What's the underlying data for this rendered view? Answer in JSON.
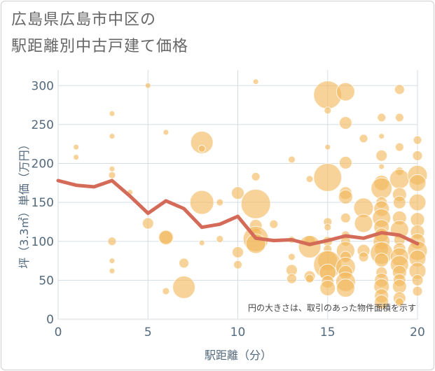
{
  "title_line1": "広島県広島市中区の",
  "title_line2": "駅距離別中古戸建て価格",
  "note": "円の大きさは、取引のあった物件面積を示す",
  "colors": {
    "bubble": "#f2b85c",
    "line": "#d46b58",
    "grid": "#d5dde3",
    "axis_text": "#53697d"
  },
  "chart_data": {
    "type": "scatter",
    "xlabel": "駅距離（分）",
    "ylabel": "坪（3.3㎡）単価（万円）",
    "xlim": [
      0,
      20
    ],
    "ylim": [
      0,
      320
    ],
    "x_ticks": [
      0,
      5,
      10,
      15,
      20
    ],
    "y_ticks": [
      0,
      50,
      100,
      150,
      200,
      250,
      300
    ],
    "grid": true,
    "series": [
      {
        "kind": "bubbles",
        "points": [
          {
            "x": 1,
            "y": 221,
            "r": 4
          },
          {
            "x": 1,
            "y": 208,
            "r": 4
          },
          {
            "x": 3,
            "y": 264,
            "r": 4
          },
          {
            "x": 3,
            "y": 235,
            "r": 4
          },
          {
            "x": 3,
            "y": 193,
            "r": 4
          },
          {
            "x": 3,
            "y": 185,
            "r": 5
          },
          {
            "x": 3,
            "y": 100,
            "r": 6
          },
          {
            "x": 3,
            "y": 75,
            "r": 4
          },
          {
            "x": 3,
            "y": 62,
            "r": 4
          },
          {
            "x": 4,
            "y": 163,
            "r": 4
          },
          {
            "x": 5,
            "y": 300,
            "r": 4
          },
          {
            "x": 5,
            "y": 123,
            "r": 8
          },
          {
            "x": 6,
            "y": 240,
            "r": 4
          },
          {
            "x": 6,
            "y": 105,
            "r": 11
          },
          {
            "x": 6,
            "y": 105,
            "r": 10
          },
          {
            "x": 6,
            "y": 36,
            "r": 5
          },
          {
            "x": 7,
            "y": 72,
            "r": 7
          },
          {
            "x": 7,
            "y": 41,
            "r": 16
          },
          {
            "x": 8,
            "y": 227,
            "r": 16
          },
          {
            "x": 8,
            "y": 219,
            "r": 5
          },
          {
            "x": 8,
            "y": 150,
            "r": 17
          },
          {
            "x": 8,
            "y": 98,
            "r": 4
          },
          {
            "x": 9,
            "y": 150,
            "r": 5
          },
          {
            "x": 9,
            "y": 103,
            "r": 5
          },
          {
            "x": 10,
            "y": 162,
            "r": 9
          },
          {
            "x": 10,
            "y": 86,
            "r": 8
          },
          {
            "x": 10,
            "y": 70,
            "r": 6
          },
          {
            "x": 11,
            "y": 305,
            "r": 4
          },
          {
            "x": 11,
            "y": 183,
            "r": 6
          },
          {
            "x": 11,
            "y": 148,
            "r": 21
          },
          {
            "x": 11,
            "y": 120,
            "r": 9
          },
          {
            "x": 11,
            "y": 110,
            "r": 8
          },
          {
            "x": 11,
            "y": 103,
            "r": 18
          },
          {
            "x": 11,
            "y": 97,
            "r": 14
          },
          {
            "x": 12,
            "y": 122,
            "r": 6
          },
          {
            "x": 13,
            "y": 205,
            "r": 5
          },
          {
            "x": 13,
            "y": 102,
            "r": 5
          },
          {
            "x": 13,
            "y": 80,
            "r": 5
          },
          {
            "x": 13,
            "y": 63,
            "r": 8
          },
          {
            "x": 13,
            "y": 52,
            "r": 7
          },
          {
            "x": 14,
            "y": 180,
            "r": 5
          },
          {
            "x": 14,
            "y": 100,
            "r": 8
          },
          {
            "x": 14,
            "y": 93,
            "r": 16
          },
          {
            "x": 14,
            "y": 55,
            "r": 8
          },
          {
            "x": 14,
            "y": 52,
            "r": 6
          },
          {
            "x": 15,
            "y": 288,
            "r": 20
          },
          {
            "x": 15,
            "y": 268,
            "r": 5
          },
          {
            "x": 15,
            "y": 221,
            "r": 4
          },
          {
            "x": 15,
            "y": 182,
            "r": 20
          },
          {
            "x": 15,
            "y": 125,
            "r": 6
          },
          {
            "x": 15,
            "y": 118,
            "r": 5
          },
          {
            "x": 15,
            "y": 100,
            "r": 7
          },
          {
            "x": 15,
            "y": 90,
            "r": 6
          },
          {
            "x": 15,
            "y": 75,
            "r": 14
          },
          {
            "x": 15,
            "y": 70,
            "r": 20
          },
          {
            "x": 15,
            "y": 60,
            "r": 12
          },
          {
            "x": 15,
            "y": 48,
            "r": 9
          },
          {
            "x": 15,
            "y": 40,
            "r": 11
          },
          {
            "x": 16,
            "y": 292,
            "r": 13
          },
          {
            "x": 16,
            "y": 252,
            "r": 9
          },
          {
            "x": 16,
            "y": 201,
            "r": 9
          },
          {
            "x": 16,
            "y": 162,
            "r": 9
          },
          {
            "x": 16,
            "y": 157,
            "r": 10
          },
          {
            "x": 16,
            "y": 130,
            "r": 7
          },
          {
            "x": 16,
            "y": 108,
            "r": 6
          },
          {
            "x": 16,
            "y": 100,
            "r": 7
          },
          {
            "x": 16,
            "y": 88,
            "r": 13
          },
          {
            "x": 16,
            "y": 80,
            "r": 8
          },
          {
            "x": 16,
            "y": 67,
            "r": 14
          },
          {
            "x": 16,
            "y": 60,
            "r": 10
          },
          {
            "x": 16,
            "y": 48,
            "r": 14
          },
          {
            "x": 16,
            "y": 40,
            "r": 13
          },
          {
            "x": 17,
            "y": 232,
            "r": 6
          },
          {
            "x": 17,
            "y": 143,
            "r": 14
          },
          {
            "x": 17,
            "y": 123,
            "r": 13
          },
          {
            "x": 17,
            "y": 88,
            "r": 9
          },
          {
            "x": 17,
            "y": 80,
            "r": 7
          },
          {
            "x": 18,
            "y": 259,
            "r": 6
          },
          {
            "x": 18,
            "y": 235,
            "r": 4
          },
          {
            "x": 18,
            "y": 210,
            "r": 8
          },
          {
            "x": 18,
            "y": 196,
            "r": 4
          },
          {
            "x": 18,
            "y": 175,
            "r": 11
          },
          {
            "x": 18,
            "y": 168,
            "r": 15
          },
          {
            "x": 18,
            "y": 150,
            "r": 8
          },
          {
            "x": 18,
            "y": 142,
            "r": 11
          },
          {
            "x": 18,
            "y": 130,
            "r": 13
          },
          {
            "x": 18,
            "y": 118,
            "r": 11
          },
          {
            "x": 18,
            "y": 108,
            "r": 10
          },
          {
            "x": 18,
            "y": 100,
            "r": 12
          },
          {
            "x": 18,
            "y": 90,
            "r": 10
          },
          {
            "x": 18,
            "y": 85,
            "r": 16
          },
          {
            "x": 18,
            "y": 76,
            "r": 10
          },
          {
            "x": 18,
            "y": 60,
            "r": 8
          },
          {
            "x": 18,
            "y": 50,
            "r": 10
          },
          {
            "x": 18,
            "y": 42,
            "r": 11
          },
          {
            "x": 18,
            "y": 30,
            "r": 10
          },
          {
            "x": 18,
            "y": 22,
            "r": 10
          },
          {
            "x": 19,
            "y": 295,
            "r": 7
          },
          {
            "x": 19,
            "y": 259,
            "r": 6
          },
          {
            "x": 19,
            "y": 221,
            "r": 6
          },
          {
            "x": 19,
            "y": 190,
            "r": 6
          },
          {
            "x": 19,
            "y": 180,
            "r": 14
          },
          {
            "x": 19,
            "y": 160,
            "r": 10
          },
          {
            "x": 19,
            "y": 150,
            "r": 9
          },
          {
            "x": 19,
            "y": 130,
            "r": 10
          },
          {
            "x": 19,
            "y": 115,
            "r": 13
          },
          {
            "x": 19,
            "y": 102,
            "r": 8
          },
          {
            "x": 19,
            "y": 90,
            "r": 9
          },
          {
            "x": 19,
            "y": 80,
            "r": 13
          },
          {
            "x": 19,
            "y": 70,
            "r": 13
          },
          {
            "x": 19,
            "y": 60,
            "r": 10
          },
          {
            "x": 19,
            "y": 50,
            "r": 9
          },
          {
            "x": 19,
            "y": 42,
            "r": 10
          },
          {
            "x": 19,
            "y": 27,
            "r": 9
          },
          {
            "x": 19,
            "y": 22,
            "r": 6
          },
          {
            "x": 20,
            "y": 230,
            "r": 6
          },
          {
            "x": 20,
            "y": 210,
            "r": 7
          },
          {
            "x": 20,
            "y": 185,
            "r": 14
          },
          {
            "x": 20,
            "y": 175,
            "r": 12
          },
          {
            "x": 20,
            "y": 150,
            "r": 12
          },
          {
            "x": 20,
            "y": 128,
            "r": 10
          },
          {
            "x": 20,
            "y": 112,
            "r": 10
          },
          {
            "x": 20,
            "y": 100,
            "r": 11
          },
          {
            "x": 20,
            "y": 88,
            "r": 14
          },
          {
            "x": 20,
            "y": 78,
            "r": 12
          },
          {
            "x": 20,
            "y": 62,
            "r": 12
          },
          {
            "x": 20,
            "y": 50,
            "r": 8
          },
          {
            "x": 20,
            "y": 36,
            "r": 7
          }
        ]
      },
      {
        "kind": "line",
        "x": [
          0,
          1,
          2,
          3,
          4,
          5,
          6,
          7,
          8,
          9,
          10,
          11,
          12,
          13,
          14,
          15,
          16,
          17,
          18,
          19,
          20
        ],
        "y": [
          178,
          172,
          170,
          178,
          158,
          136,
          152,
          142,
          118,
          122,
          132,
          104,
          101,
          102,
          96,
          101,
          107,
          104,
          111,
          108,
          97
        ]
      }
    ]
  }
}
